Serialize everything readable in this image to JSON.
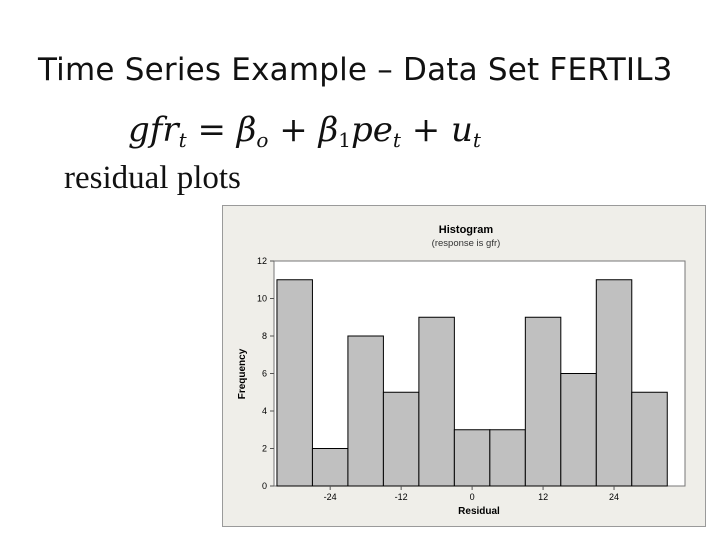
{
  "slide": {
    "title": "Time Series Example – Data Set FERTIL3",
    "equation": {
      "lhs": "gfr",
      "lhs_sub": "t",
      "eq": " = ",
      "b0": "β",
      "b0_sub": "o",
      "plus1": " + ",
      "b1": "β",
      "b1_sub": "1",
      "pe": "pe",
      "pe_sub": "t",
      "plus2": " + ",
      "u": "u",
      "u_sub": "t"
    },
    "subheading": "residual plots"
  },
  "colors": {
    "bar_fill": "#c0c0c0",
    "bar_stroke": "#000000",
    "panel_bg": "#efeee9",
    "plot_bg": "#ffffff"
  },
  "chart_data": {
    "type": "bar",
    "title": "Histogram",
    "subtitle": "(response is gfr)",
    "xlabel": "Residual",
    "ylabel": "Frequency",
    "bin_width": 6,
    "bins": [
      {
        "start": -33,
        "end": -27,
        "count": 11
      },
      {
        "start": -27,
        "end": -21,
        "count": 2
      },
      {
        "start": -21,
        "end": -15,
        "count": 8
      },
      {
        "start": -15,
        "end": -9,
        "count": 5
      },
      {
        "start": -9,
        "end": -3,
        "count": 9
      },
      {
        "start": -3,
        "end": 3,
        "count": 3
      },
      {
        "start": 3,
        "end": 9,
        "count": 3
      },
      {
        "start": 9,
        "end": 15,
        "count": 9
      },
      {
        "start": 15,
        "end": 21,
        "count": 6
      },
      {
        "start": 21,
        "end": 27,
        "count": 11
      },
      {
        "start": 27,
        "end": 33,
        "count": 5
      }
    ],
    "xlim": [
      -33.5,
      36
    ],
    "ylim": [
      0,
      12
    ],
    "xticks": [
      {
        "value": -24,
        "label": "-24"
      },
      {
        "value": -12,
        "label": "-12"
      },
      {
        "value": 0,
        "label": "0"
      },
      {
        "value": 12,
        "label": "12"
      },
      {
        "value": 24,
        "label": "24"
      }
    ],
    "yticks": [
      {
        "value": 0,
        "label": "0"
      },
      {
        "value": 2,
        "label": "2"
      },
      {
        "value": 4,
        "label": "4"
      },
      {
        "value": 6,
        "label": "6"
      },
      {
        "value": 8,
        "label": "8"
      },
      {
        "value": 10,
        "label": "10"
      },
      {
        "value": 12,
        "label": "12"
      }
    ],
    "grid": false
  }
}
